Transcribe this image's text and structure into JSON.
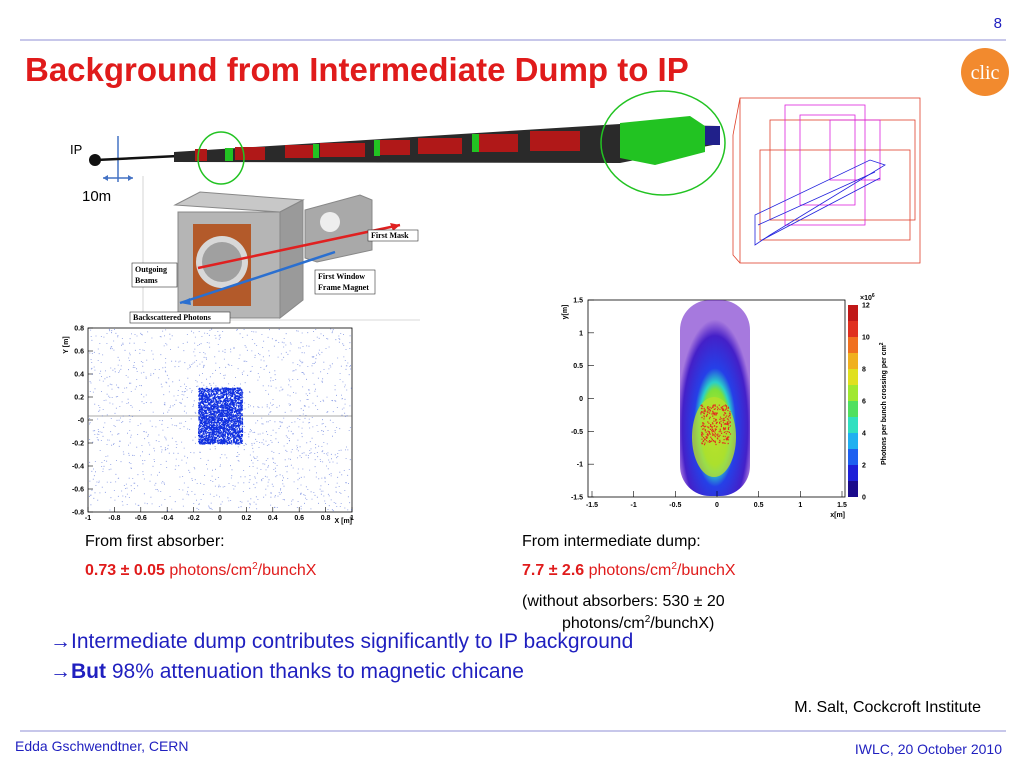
{
  "header": {
    "page_number": "8",
    "title": "Background from Intermediate Dump to IP"
  },
  "beamline": {
    "ip_label": "IP",
    "scale_label": "10m"
  },
  "render": {
    "labels": [
      "First Mask",
      "Outgoing",
      "Beams",
      "First Window",
      "Frame Magnet",
      "Backscattered Photons"
    ]
  },
  "left_plot": {
    "y_label": "Y [m]",
    "x_label": "X [m]",
    "y_ticks": [
      "0.8",
      "0.6",
      "0.4",
      "0.2",
      "-0",
      "-0.2",
      "-0.4",
      "-0.6",
      "-0.8"
    ],
    "x_ticks": [
      "-1",
      "-0.8",
      "-0.6",
      "-0.4",
      "-0.2",
      "0",
      "0.2",
      "0.4",
      "0.6",
      "0.8",
      "1"
    ]
  },
  "right_plot": {
    "y_label": "y[m]",
    "x_label": "x[m]",
    "y_ticks": [
      "1.5",
      "1",
      "0.5",
      "0",
      "-0.5",
      "-1",
      "-1.5"
    ],
    "x_ticks": [
      "-1.5",
      "-1",
      "-0.5",
      "0",
      "0.5",
      "1",
      "1.5"
    ],
    "colorbar_exponent": "×10",
    "colorbar_exponent_power": "6",
    "colorbar_ticks": [
      "12",
      "10",
      "8",
      "6",
      "4",
      "2",
      "0"
    ],
    "colorbar_label": "Photons per bunch crossing per cm",
    "colorbar_label_power": "2"
  },
  "results": [
    {
      "heading": "From first absorber:",
      "value": "0.73 ± 0.05",
      "unit": " photons/cm",
      "unit_sup": "2",
      "unit_end": "/bunchX"
    },
    {
      "heading": "From intermediate dump:",
      "value": "7.7 ± 2.6",
      "unit": " photons/cm",
      "unit_sup": "2",
      "unit_end": "/bunchX",
      "note": "(without absorbers:  530 ± 20",
      "note_unit": "photons/cm",
      "note_unit_sup": "2",
      "note_unit_end": "/bunchX)"
    }
  ],
  "conclusions": [
    {
      "arrow": "→",
      "bold": "",
      "text": "Intermediate dump contributes significantly to IP background"
    },
    {
      "arrow": "→",
      "bold": "But",
      "text": " 98% attenuation thanks to magnetic chicane"
    }
  ],
  "credit": "M. Salt, Cockcroft Institute",
  "footer": {
    "author": "Edda Gschwendtner, CERN",
    "event": "IWLC, 20 October 2010"
  }
}
